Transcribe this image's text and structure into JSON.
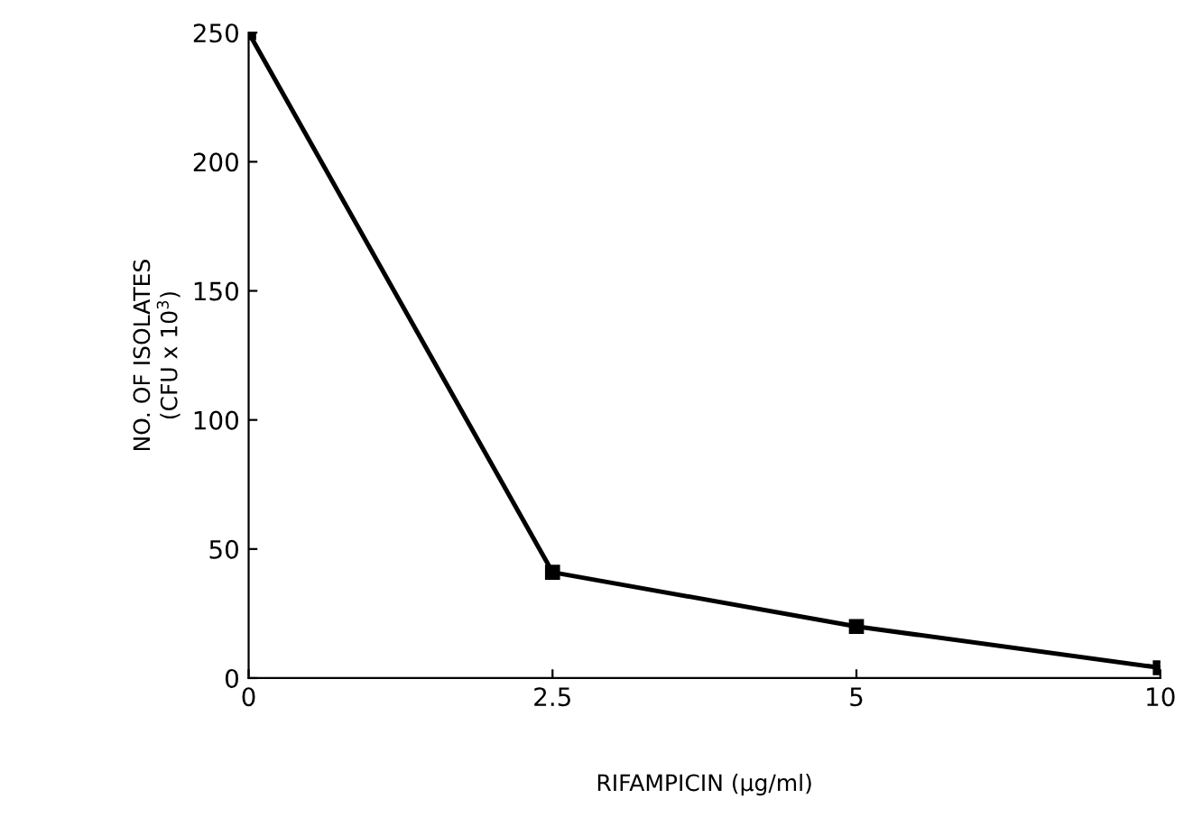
{
  "chart_data": {
    "type": "line",
    "xlabel": "RIFAMPICIN (µg/ml)",
    "ylabel": "NO. OF ISOLATES\n(CFU x 10$^{3}$)",
    "categories": [
      "0",
      "2.5",
      "5",
      "10"
    ],
    "series": [
      {
        "color": "#000000",
        "values": [
          250,
          41,
          20,
          4
        ]
      }
    ],
    "ylim": [
      0,
      250
    ],
    "yticks": [
      0,
      50,
      100,
      150,
      200,
      250
    ],
    "grid": false,
    "legend": false,
    "marker": "square",
    "line_style": "solid"
  }
}
